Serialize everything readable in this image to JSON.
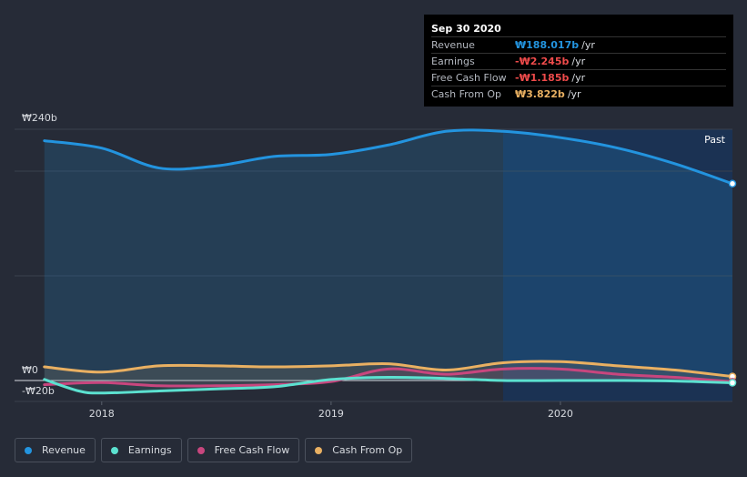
{
  "colors": {
    "revenue": "#2394df",
    "earnings": "#5ce1d0",
    "free_cash_flow": "#c8467e",
    "cash_from_op": "#e9b062",
    "background": "#262b37",
    "future_region": "#1b3253"
  },
  "tooltip": {
    "date": "Sep 30 2020",
    "rows": [
      {
        "name": "Revenue",
        "value": "₩188.017b",
        "unit": "/yr",
        "color": "#2394df"
      },
      {
        "name": "Earnings",
        "value": "-₩2.245b",
        "unit": "/yr",
        "color": "#ef4b4b"
      },
      {
        "name": "Free Cash Flow",
        "value": "-₩1.185b",
        "unit": "/yr",
        "color": "#ef4b4b"
      },
      {
        "name": "Cash From Op",
        "value": "₩3.822b",
        "unit": "/yr",
        "color": "#e9b062"
      }
    ]
  },
  "legend": [
    {
      "label": "Revenue",
      "color": "#2394df"
    },
    {
      "label": "Earnings",
      "color": "#5ce1d0"
    },
    {
      "label": "Free Cash Flow",
      "color": "#c8467e"
    },
    {
      "label": "Cash From Op",
      "color": "#e9b062"
    }
  ],
  "chart_data": {
    "type": "area",
    "x_range": [
      2017.62,
      2020.75
    ],
    "ylim": [
      -20,
      240
    ],
    "y_tick_labels": [
      {
        "value": 240,
        "label": "₩240b"
      },
      {
        "value": 0,
        "label": "₩0"
      },
      {
        "value": -20,
        "label": "-₩20b"
      }
    ],
    "x_tick_labels": [
      {
        "value": 2018.0,
        "label": "2018"
      },
      {
        "value": 2019.0,
        "label": "2019"
      },
      {
        "value": 2020.0,
        "label": "2020"
      }
    ],
    "gridlines_y": [
      240,
      200,
      100,
      0
    ],
    "past_label": "Past",
    "highlight_start_x": 2019.75,
    "series": [
      {
        "name": "Revenue",
        "color": "#2394df",
        "x": [
          2017.75,
          2018.0,
          2018.25,
          2018.5,
          2018.75,
          2019.0,
          2019.25,
          2019.5,
          2019.75,
          2020.0,
          2020.25,
          2020.5,
          2020.75
        ],
        "values": [
          229,
          222,
          203,
          205,
          214,
          216,
          225,
          238,
          238,
          232,
          222,
          207,
          188
        ]
      },
      {
        "name": "Earnings",
        "color": "#5ce1d0",
        "x": [
          2017.75,
          2017.9,
          2018.0,
          2018.25,
          2018.5,
          2018.75,
          2019.0,
          2019.25,
          2019.5,
          2019.75,
          2020.0,
          2020.25,
          2020.5,
          2020.75
        ],
        "values": [
          1,
          -10,
          -12,
          -10,
          -8,
          -6,
          1,
          3,
          2,
          0,
          0,
          0,
          -0.5,
          -2.2
        ]
      },
      {
        "name": "Free Cash Flow",
        "color": "#c8467e",
        "x": [
          2017.75,
          2018.0,
          2018.25,
          2018.5,
          2018.75,
          2019.0,
          2019.25,
          2019.5,
          2019.75,
          2020.0,
          2020.25,
          2020.5,
          2020.75
        ],
        "values": [
          -4,
          -2,
          -5,
          -5,
          -4,
          -1,
          11,
          6,
          11,
          11,
          6,
          3,
          -1.2
        ]
      },
      {
        "name": "Cash From Op",
        "color": "#e9b062",
        "x": [
          2017.75,
          2018.0,
          2018.25,
          2018.5,
          2018.75,
          2019.0,
          2019.25,
          2019.5,
          2019.75,
          2020.0,
          2020.25,
          2020.5,
          2020.75
        ],
        "values": [
          13,
          8,
          14,
          14,
          13,
          14,
          16,
          10,
          17,
          18,
          14,
          10,
          3.8
        ]
      }
    ]
  }
}
